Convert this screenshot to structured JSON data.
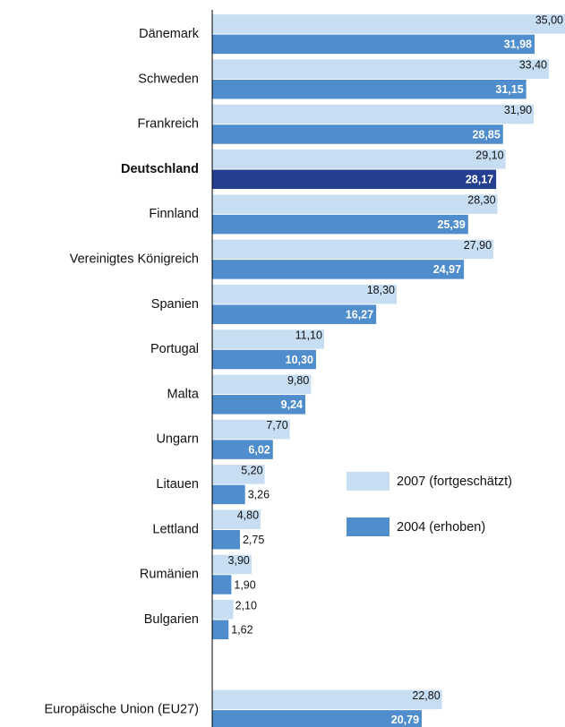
{
  "chart_data": {
    "type": "bar",
    "orientation": "horizontal",
    "categories": [
      "Dänemark",
      "Schweden",
      "Frankreich",
      "Deutschland",
      "Finnland",
      "Vereinigtes Königreich",
      "Spanien",
      "Portugal",
      "Malta",
      "Ungarn",
      "Litauen",
      "Lettland",
      "Rumänien",
      "Bulgarien",
      null,
      "Europäische Union (EU27)"
    ],
    "series": [
      {
        "name": "2007 (fortgeschätzt)",
        "color": "#c6ddf2",
        "values": [
          35.0,
          33.4,
          31.9,
          29.1,
          28.3,
          27.9,
          18.3,
          11.1,
          9.8,
          7.7,
          5.2,
          4.8,
          3.9,
          2.1,
          null,
          22.8
        ],
        "value_labels": [
          "35,00",
          "33,40",
          "31,90",
          "29,10",
          "28,30",
          "27,90",
          "18,30",
          "11,10",
          "9,80",
          "7,70",
          "5,20",
          "4,80",
          "3,90",
          "2,10",
          null,
          "22,80"
        ]
      },
      {
        "name": "2004 (erhoben)",
        "color": "#4f8dcd",
        "highlight_color": "#243f8f",
        "values": [
          31.98,
          31.15,
          28.85,
          28.17,
          25.39,
          24.97,
          16.27,
          10.3,
          9.24,
          6.02,
          3.26,
          2.75,
          1.9,
          1.62,
          null,
          20.79
        ],
        "value_labels": [
          "31,98",
          "31,15",
          "28,85",
          "28,17",
          "25,39",
          "24,97",
          "16,27",
          "10,30",
          "9,24",
          "6,02",
          "3,26",
          "2,75",
          "1,90",
          "1,62",
          null,
          "20,79"
        ]
      }
    ],
    "highlight": "Deutschland",
    "xlim": [
      0,
      35
    ],
    "grid": false,
    "legend": "right"
  }
}
